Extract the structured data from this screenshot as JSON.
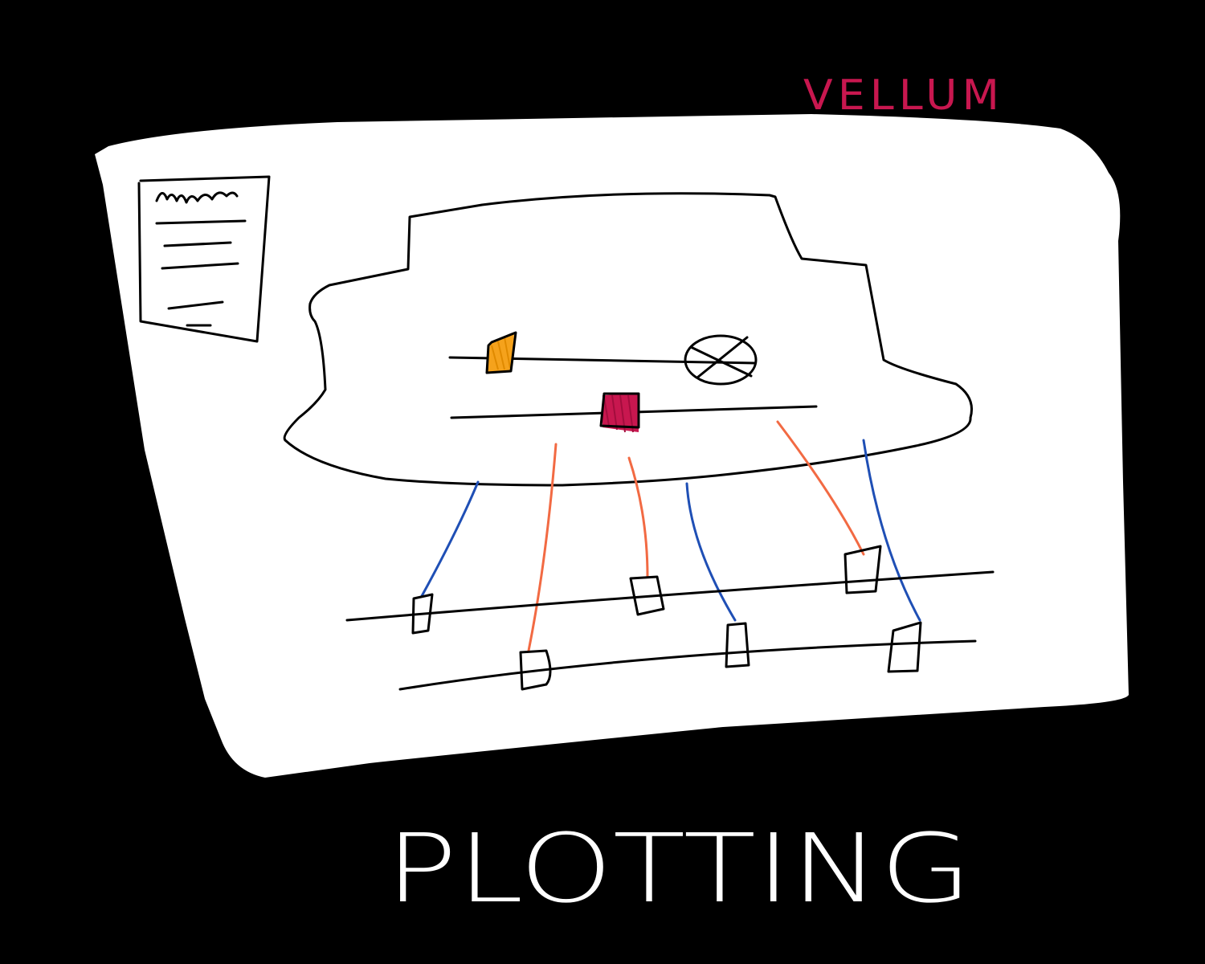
{
  "labels": {
    "vellum": "VELLUM",
    "plotting": "PLOTTING"
  },
  "colors": {
    "background": "#000000",
    "sheet": "#ffffff",
    "ink": "#000000",
    "vellum_label": "#c8174f",
    "orange_marker": "#f5a21c",
    "crimson_marker": "#c8174f",
    "red_cord": "#f26a43",
    "blue_cord": "#1f4fb5",
    "title_text": "#ffffff"
  },
  "icons": {
    "legend_card": "document-icon",
    "crossed_circle": "crossed-circle-icon",
    "flags": "flag-icon"
  }
}
